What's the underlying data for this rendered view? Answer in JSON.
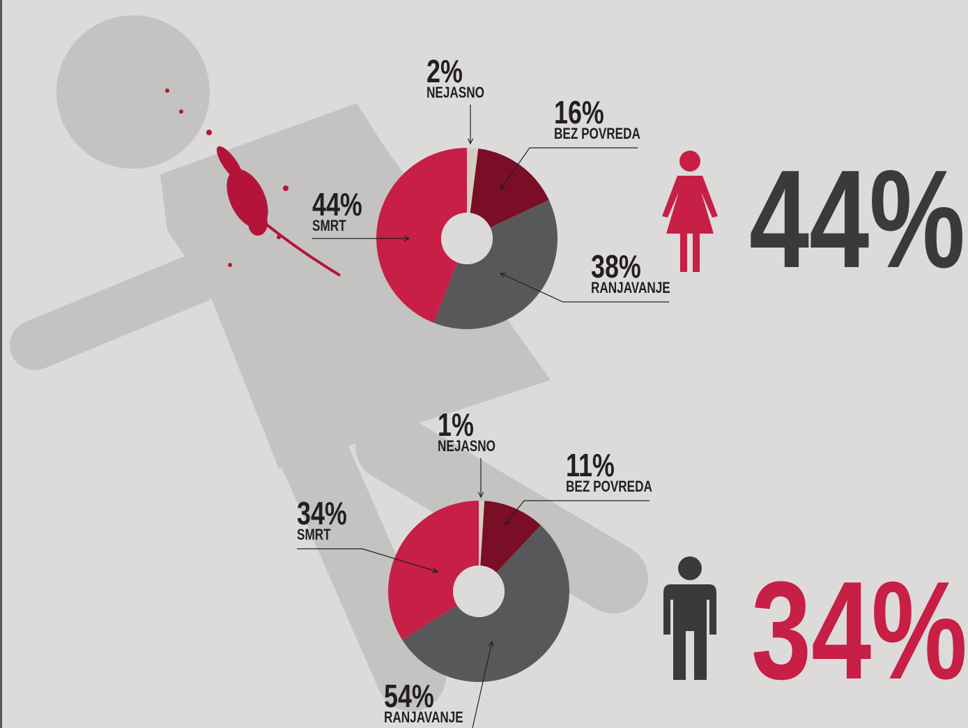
{
  "chart_data": [
    {
      "type": "pie",
      "donut": true,
      "categories": [
        "NEJASNO",
        "BEZ POVREDA",
        "RANJAVANJE",
        "SMRT"
      ],
      "values": [
        2,
        16,
        38,
        44
      ],
      "value_labels": [
        "2%",
        "16%",
        "38%",
        "44%"
      ],
      "colors": [
        "#d5cebf",
        "#7a0e27",
        "#58585a",
        "#c71f45"
      ],
      "annotation": "44%",
      "annotation_color": "#3a3a3c"
    },
    {
      "type": "pie",
      "donut": true,
      "categories": [
        "NEJASNO",
        "BEZ POVREDA",
        "RANJAVANJE",
        "SMRT"
      ],
      "values": [
        1,
        11,
        54,
        34
      ],
      "value_labels": [
        "1%",
        "11%",
        "54%",
        "34%"
      ],
      "colors": [
        "#d5cebf",
        "#7a0e27",
        "#58585a",
        "#c71f45"
      ],
      "annotation": "34%",
      "annotation_color": "#c71f45"
    }
  ]
}
